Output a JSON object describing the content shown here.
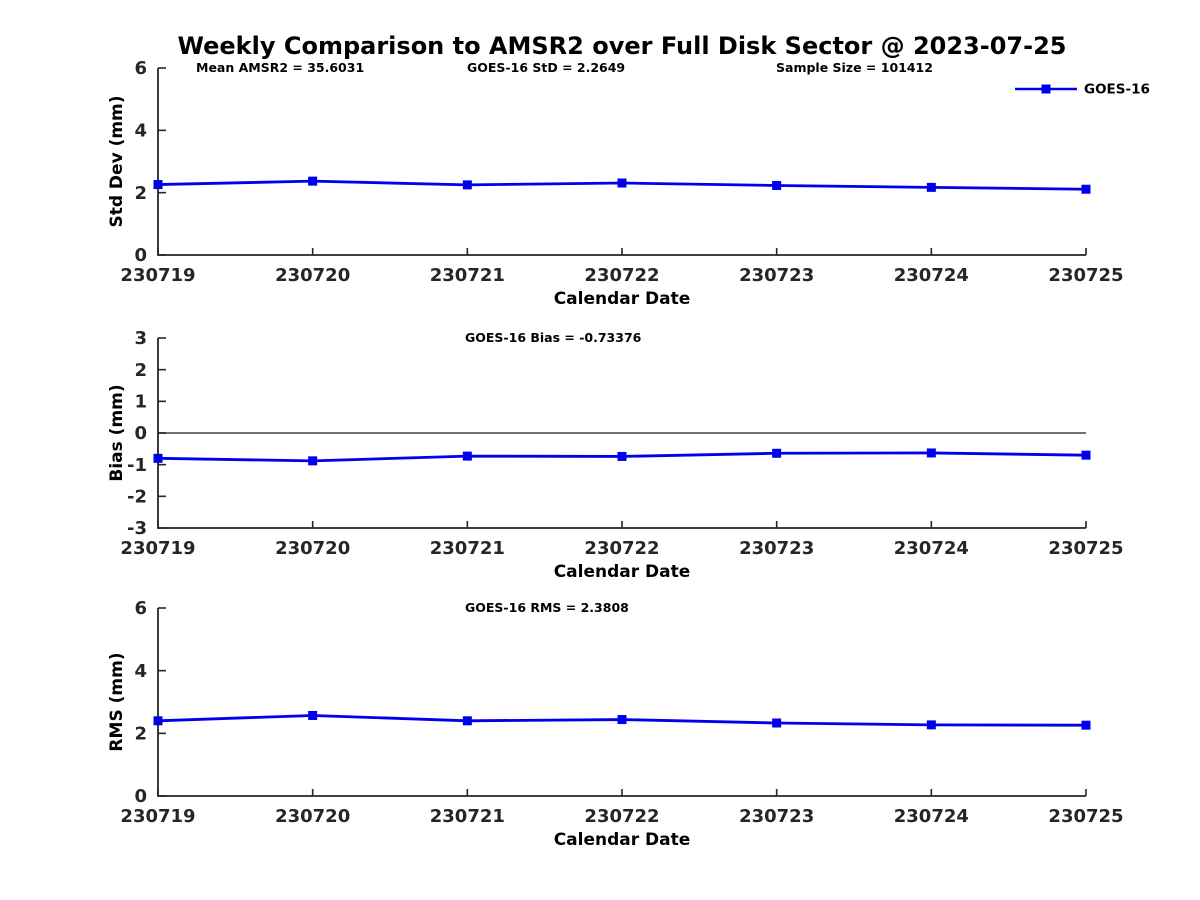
{
  "title": "Weekly Comparison to AMSR2 over Full Disk Sector @ 2023-07-25",
  "colors": {
    "line": "#0000EE",
    "axis": "#262626",
    "text": "#000000",
    "background": "#ffffff"
  },
  "legend": {
    "label": "GOES-16",
    "position": "top-right"
  },
  "chart_data": [
    {
      "type": "line",
      "name": "std-dev-panel",
      "title": "",
      "xlabel": "Calendar Date",
      "ylabel": "Std Dev (mm)",
      "ylim": [
        0,
        6
      ],
      "yticks": [
        0,
        2,
        4,
        6
      ],
      "grid": false,
      "categories": [
        "230719",
        "230720",
        "230721",
        "230722",
        "230723",
        "230724",
        "230725"
      ],
      "series": [
        {
          "name": "GOES-16",
          "values": [
            2.26,
            2.37,
            2.25,
            2.31,
            2.23,
            2.17,
            2.11
          ]
        }
      ],
      "annotations": [
        "Mean AMSR2 = 35.6031",
        "GOES-16 StD = 2.2649",
        "Sample Size = 101412"
      ]
    },
    {
      "type": "line",
      "name": "bias-panel",
      "title": "GOES-16 Bias  = -0.73376",
      "xlabel": "Calendar Date",
      "ylabel": "Bias (mm)",
      "ylim": [
        -3,
        3
      ],
      "yticks": [
        -3,
        -2,
        -1,
        0,
        1,
        2,
        3
      ],
      "zero_line": true,
      "grid": false,
      "categories": [
        "230719",
        "230720",
        "230721",
        "230722",
        "230723",
        "230724",
        "230725"
      ],
      "series": [
        {
          "name": "GOES-16",
          "values": [
            -0.8,
            -0.88,
            -0.73,
            -0.74,
            -0.64,
            -0.63,
            -0.7
          ]
        }
      ]
    },
    {
      "type": "line",
      "name": "rms-panel",
      "title": "GOES-16 RMS = 2.3808",
      "xlabel": "Calendar Date",
      "ylabel": "RMS (mm)",
      "ylim": [
        0,
        6
      ],
      "yticks": [
        0,
        2,
        4,
        6
      ],
      "grid": false,
      "categories": [
        "230719",
        "230720",
        "230721",
        "230722",
        "230723",
        "230724",
        "230725"
      ],
      "series": [
        {
          "name": "GOES-16",
          "values": [
            2.4,
            2.57,
            2.4,
            2.44,
            2.33,
            2.27,
            2.26
          ]
        }
      ]
    }
  ]
}
